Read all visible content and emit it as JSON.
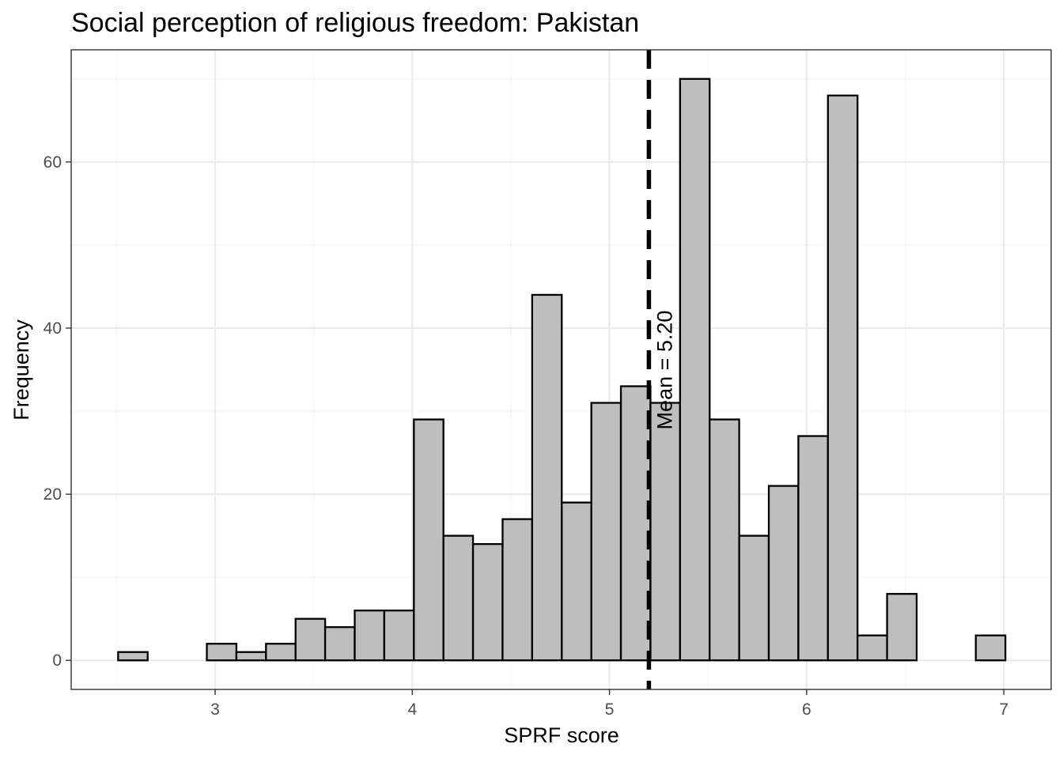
{
  "chart_data": {
    "type": "bar",
    "subtype": "histogram",
    "title": "Social perception of religious freedom: Pakistan",
    "xlabel": "SPRF score",
    "ylabel": "Frequency",
    "bin_width": 0.15,
    "x": [
      2.583,
      2.733,
      2.883,
      3.033,
      3.183,
      3.333,
      3.483,
      3.633,
      3.783,
      3.933,
      4.083,
      4.233,
      4.383,
      4.533,
      4.683,
      4.833,
      4.983,
      5.133,
      5.283,
      5.433,
      5.583,
      5.733,
      5.883,
      6.033,
      6.183,
      6.333,
      6.483,
      6.633,
      6.783,
      6.933
    ],
    "values": [
      1,
      0,
      0,
      2,
      1,
      2,
      5,
      4,
      6,
      6,
      29,
      15,
      14,
      17,
      44,
      19,
      31,
      33,
      31,
      70,
      29,
      15,
      21,
      27,
      68,
      3,
      8,
      0,
      0,
      3
    ],
    "xlim": [
      2.27,
      7.24
    ],
    "ylim": [
      -3.5,
      73.5
    ],
    "x_ticks": [
      "3",
      "4",
      "5",
      "6",
      "7"
    ],
    "y_ticks": [
      "0",
      "20",
      "40",
      "60"
    ],
    "mean": 5.2,
    "mean_label": "Mean = 5.20",
    "grid": true,
    "colors": {
      "bar_fill": "#bebebe",
      "bar_stroke": "#000000",
      "grid_major": "#ebebeb",
      "grid_minor": "#f5f5f5",
      "panel_border": "#333333",
      "mean_line": "#000000"
    }
  }
}
